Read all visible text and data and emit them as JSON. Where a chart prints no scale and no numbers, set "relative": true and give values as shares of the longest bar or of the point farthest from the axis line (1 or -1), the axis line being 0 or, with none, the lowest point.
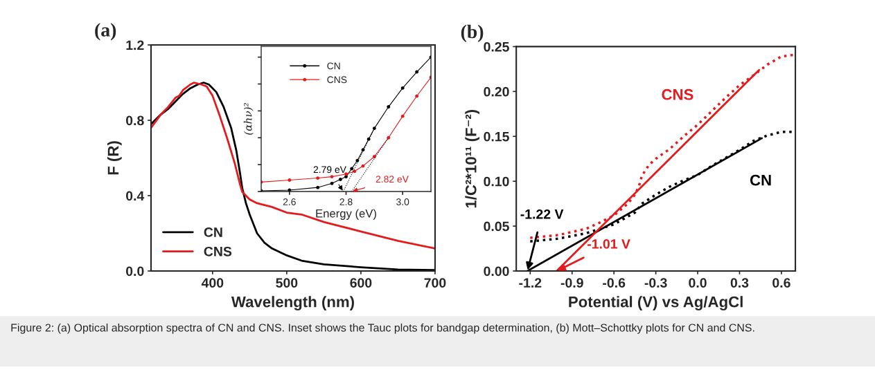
{
  "chart_data": [
    {
      "type": "line",
      "title": "(a)",
      "xlabel": "Wavelength (nm)",
      "ylabel": "F (R)",
      "xlim": [
        317,
        700
      ],
      "xticks": [
        400,
        500,
        600,
        700
      ],
      "ylim": [
        0,
        1.2
      ],
      "yticks": [
        {
          "value": 0,
          "label": "0.0"
        },
        0.4,
        0.8,
        1.2
      ],
      "legend": "bottom left",
      "line_style": "solid",
      "series": [
        {
          "name": "CN",
          "color": "#000000",
          "x": [
            317,
            330,
            340,
            350,
            360,
            370,
            380,
            388,
            395,
            405,
            415,
            425,
            432,
            437,
            440,
            445,
            450,
            460,
            470,
            480,
            500,
            520,
            550,
            600,
            650,
            700
          ],
          "values": [
            0.78,
            0.83,
            0.86,
            0.9,
            0.94,
            0.97,
            0.99,
            1.0,
            0.99,
            0.95,
            0.87,
            0.76,
            0.64,
            0.52,
            0.44,
            0.36,
            0.3,
            0.2,
            0.15,
            0.12,
            0.083,
            0.055,
            0.035,
            0.02,
            0.008,
            0.005
          ]
        },
        {
          "name": "CNS",
          "color": "#e41a1c",
          "x": [
            317,
            330,
            340,
            350,
            355,
            360,
            370,
            375,
            385,
            392,
            400,
            410,
            420,
            430,
            437,
            440,
            450,
            460,
            480,
            500,
            520,
            550,
            600,
            650,
            700
          ],
          "values": [
            0.76,
            0.83,
            0.87,
            0.92,
            0.93,
            0.96,
            0.99,
            1.0,
            0.99,
            0.98,
            0.93,
            0.82,
            0.7,
            0.57,
            0.46,
            0.42,
            0.38,
            0.36,
            0.34,
            0.31,
            0.3,
            0.26,
            0.21,
            0.16,
            0.12
          ]
        }
      ]
    },
    {
      "type": "line",
      "xlabel": "Energy (eV)",
      "ylabel": "(αhν)²",
      "relative": true,
      "xlim": [
        2.5,
        3.1
      ],
      "xticks": [
        2.6,
        2.8,
        {
          "value": 3,
          "label": "3.0"
        }
      ],
      "legend": "top left",
      "marker": "circle",
      "annotations": [
        {
          "text": "2.79 eV",
          "x": 2.79,
          "y": 0
        },
        {
          "text": "2.82 eV",
          "x": 2.82,
          "y": 0
        }
      ],
      "series": [
        {
          "name": "CN",
          "color": "#000000",
          "x": [
            2.5,
            2.6,
            2.7,
            2.75,
            2.78,
            2.8,
            2.82,
            2.84,
            2.86,
            2.88,
            2.9,
            2.95,
            3.0,
            3.05,
            3.1
          ],
          "values": [
            0.005,
            0.01,
            0.03,
            0.06,
            0.09,
            0.11,
            0.17,
            0.23,
            0.31,
            0.39,
            0.47,
            0.63,
            0.77,
            0.89,
            1.0
          ]
        },
        {
          "name": "CNS",
          "color": "#e41a1c",
          "x": [
            2.5,
            2.6,
            2.7,
            2.75,
            2.8,
            2.83,
            2.86,
            2.9,
            2.95,
            3.0,
            3.05,
            3.1
          ],
          "values": [
            0.07,
            0.085,
            0.1,
            0.11,
            0.13,
            0.15,
            0.19,
            0.26,
            0.4,
            0.56,
            0.71,
            0.85
          ]
        },
        {
          "color": "#000000",
          "marker": "none",
          "line_style": "dotted",
          "x": [
            2.79,
            2.9
          ],
          "values": [
            0,
            0.47
          ]
        },
        {
          "color": "#000000",
          "marker": "none",
          "line_style": "dotted",
          "x": [
            2.82,
            2.95
          ],
          "values": [
            0,
            0.4
          ]
        }
      ]
    },
    {
      "type": "line",
      "title": "(b)",
      "xlabel": "Potential (V) vs Ag/AgCl",
      "ylabel": "1/C²*10¹¹ (F⁻²)",
      "xlim": [
        -1.3,
        0.7
      ],
      "xticks": [
        -1.2,
        -0.9,
        -0.6,
        -0.3,
        {
          "value": 0,
          "label": "0.0"
        },
        0.3,
        0.6
      ],
      "ylim": [
        0,
        0.25
      ],
      "yticks": [
        {
          "value": 0,
          "label": "0.00"
        },
        0.05,
        {
          "value": 0.1,
          "label": "0.10"
        },
        0.15,
        {
          "value": 0.2,
          "label": "0.20"
        },
        0.25
      ],
      "legend": false,
      "annotations": [
        {
          "text": "-1.22 V",
          "x": -1.22,
          "y": 0
        },
        {
          "text": "-1.01 V",
          "x": -1.01,
          "y": 0
        },
        "Figure 2: (a) Optical absorption spectra of CN and CNS. Inset shows the Tauc plots for bandgap determination, (b) Mott–Schottky plots for CN and CNS."
      ],
      "series": [
        {
          "name": "CN",
          "color": "#000000",
          "line_style": "dotted",
          "x": [
            -1.2,
            -1.0,
            -0.8,
            -0.6,
            -0.45,
            -0.4,
            -0.3,
            -0.2,
            -0.1,
            0.0,
            0.1,
            0.2,
            0.3,
            0.4,
            0.5,
            0.6,
            0.7
          ],
          "values": [
            0.033,
            0.036,
            0.042,
            0.052,
            0.065,
            0.075,
            0.085,
            0.094,
            0.101,
            0.107,
            0.117,
            0.126,
            0.135,
            0.145,
            0.151,
            0.155,
            0.155
          ]
        },
        {
          "name": "CNS",
          "color": "#e41a1c",
          "line_style": "dotted",
          "x": [
            -1.2,
            -1.0,
            -0.8,
            -0.7,
            -0.6,
            -0.5,
            -0.45,
            -0.42,
            -0.4,
            -0.35,
            -0.3,
            -0.2,
            -0.1,
            0.0,
            0.1,
            0.2,
            0.3,
            0.4,
            0.5,
            0.6,
            0.7
          ],
          "values": [
            0.037,
            0.04,
            0.047,
            0.054,
            0.062,
            0.075,
            0.085,
            0.095,
            0.106,
            0.118,
            0.125,
            0.136,
            0.15,
            0.163,
            0.178,
            0.193,
            0.207,
            0.218,
            0.23,
            0.239,
            0.241
          ]
        },
        {
          "color": "#000000",
          "line_style": "solid",
          "x": [
            -1.22,
            0.46
          ],
          "values": [
            0,
            0.148
          ]
        },
        {
          "color": "#e41a1c",
          "line_style": "solid",
          "x": [
            -1.01,
            0.44
          ],
          "values": [
            0,
            0.224
          ]
        }
      ]
    }
  ]
}
